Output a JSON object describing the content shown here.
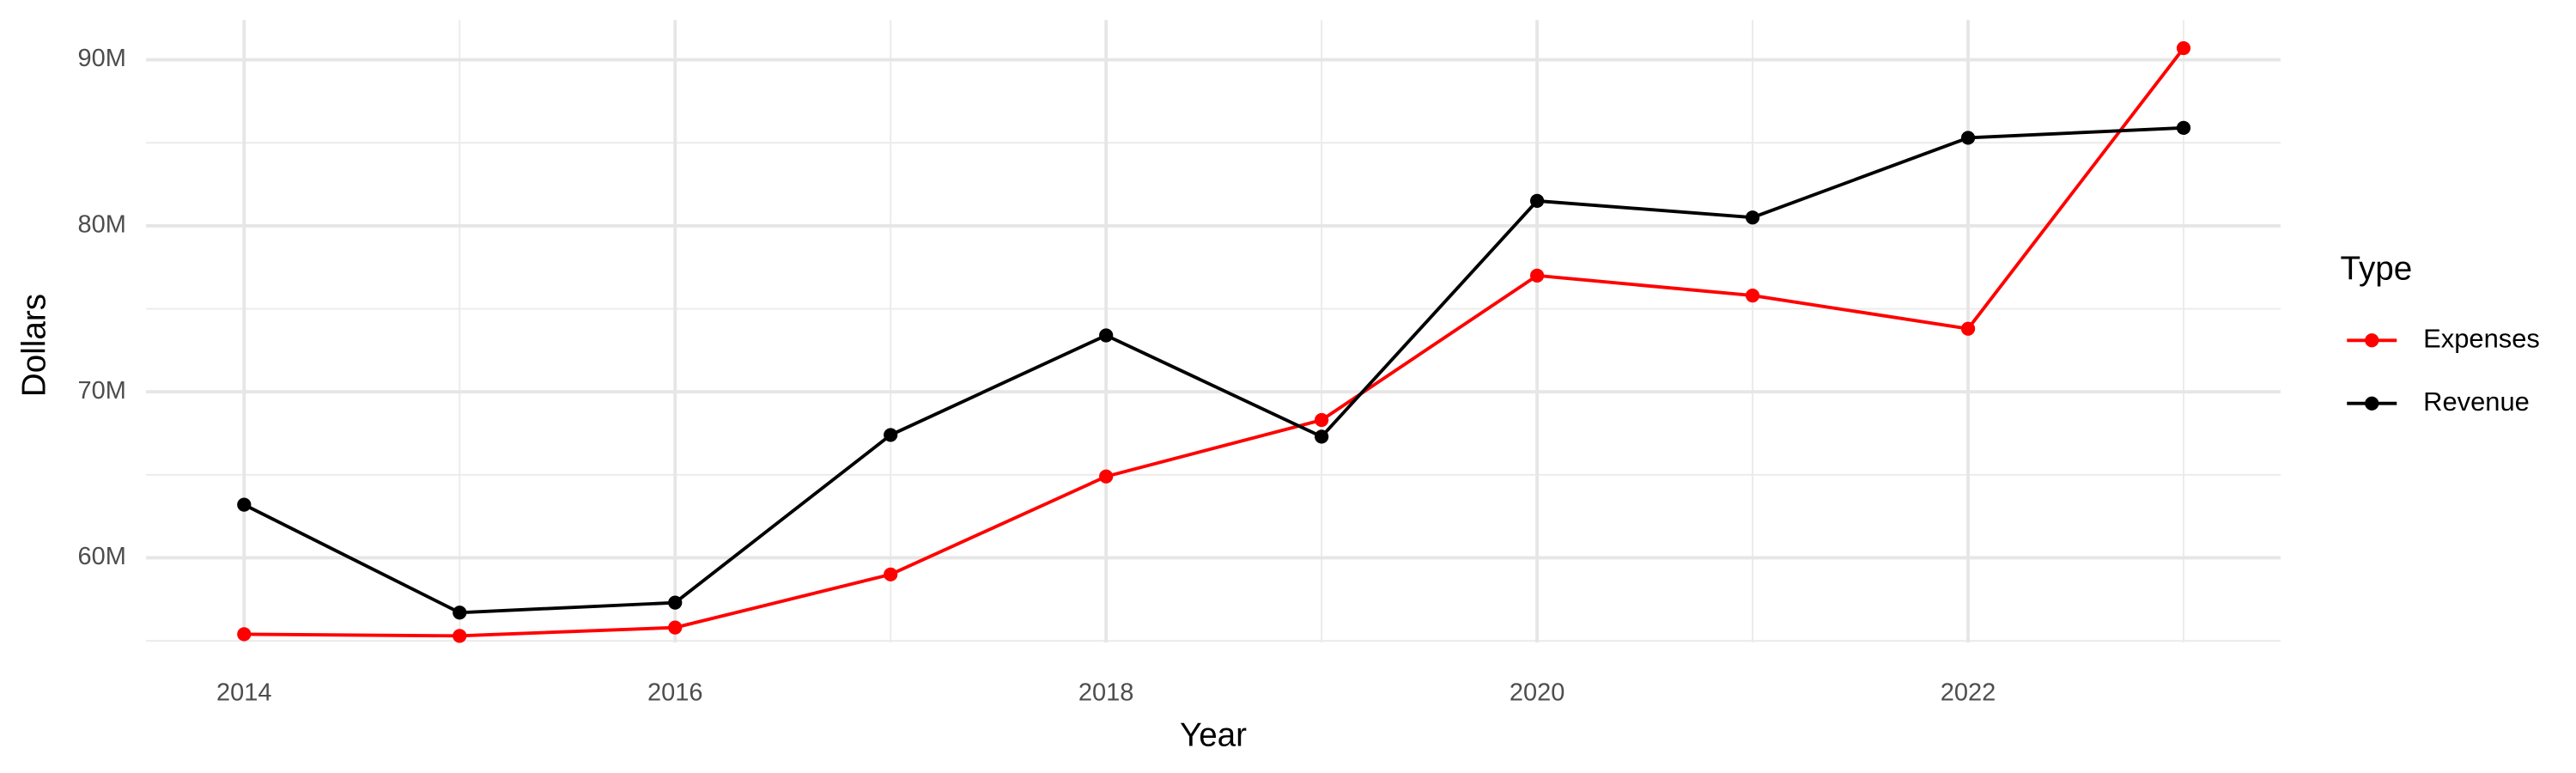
{
  "chart_data": {
    "type": "line",
    "x_label": "Year",
    "y_label": "Dollars",
    "x": [
      2014,
      2015,
      2016,
      2017,
      2018,
      2019,
      2020,
      2021,
      2022,
      2023
    ],
    "series": [
      {
        "name": "Expenses",
        "color": "#ff0000",
        "values": [
          55400000,
          55300000,
          55800000,
          59000000,
          64900000,
          68300000,
          77000000,
          75800000,
          73800000,
          90700000
        ]
      },
      {
        "name": "Revenue",
        "color": "#000000",
        "values": [
          63200000,
          56700000,
          57300000,
          67400000,
          73400000,
          67300000,
          81500000,
          80500000,
          85300000,
          85900000
        ]
      }
    ],
    "xlim": [
      2013.545,
      2023.45
    ],
    "ylim": [
      54900000,
      92400000
    ],
    "xticks": [
      2014,
      2016,
      2018,
      2020,
      2022
    ],
    "xticks_minor": [
      2015,
      2017,
      2019,
      2021,
      2023
    ],
    "yticks": [
      {
        "value": 60000000,
        "label": "60M"
      },
      {
        "value": 70000000,
        "label": "70M"
      },
      {
        "value": 80000000,
        "label": "80M"
      },
      {
        "value": 90000000,
        "label": "90M"
      }
    ],
    "yticks_minor": [
      55000000,
      65000000,
      75000000,
      85000000
    ],
    "grid": true,
    "legend_title": "Type",
    "legend_position": "right"
  }
}
